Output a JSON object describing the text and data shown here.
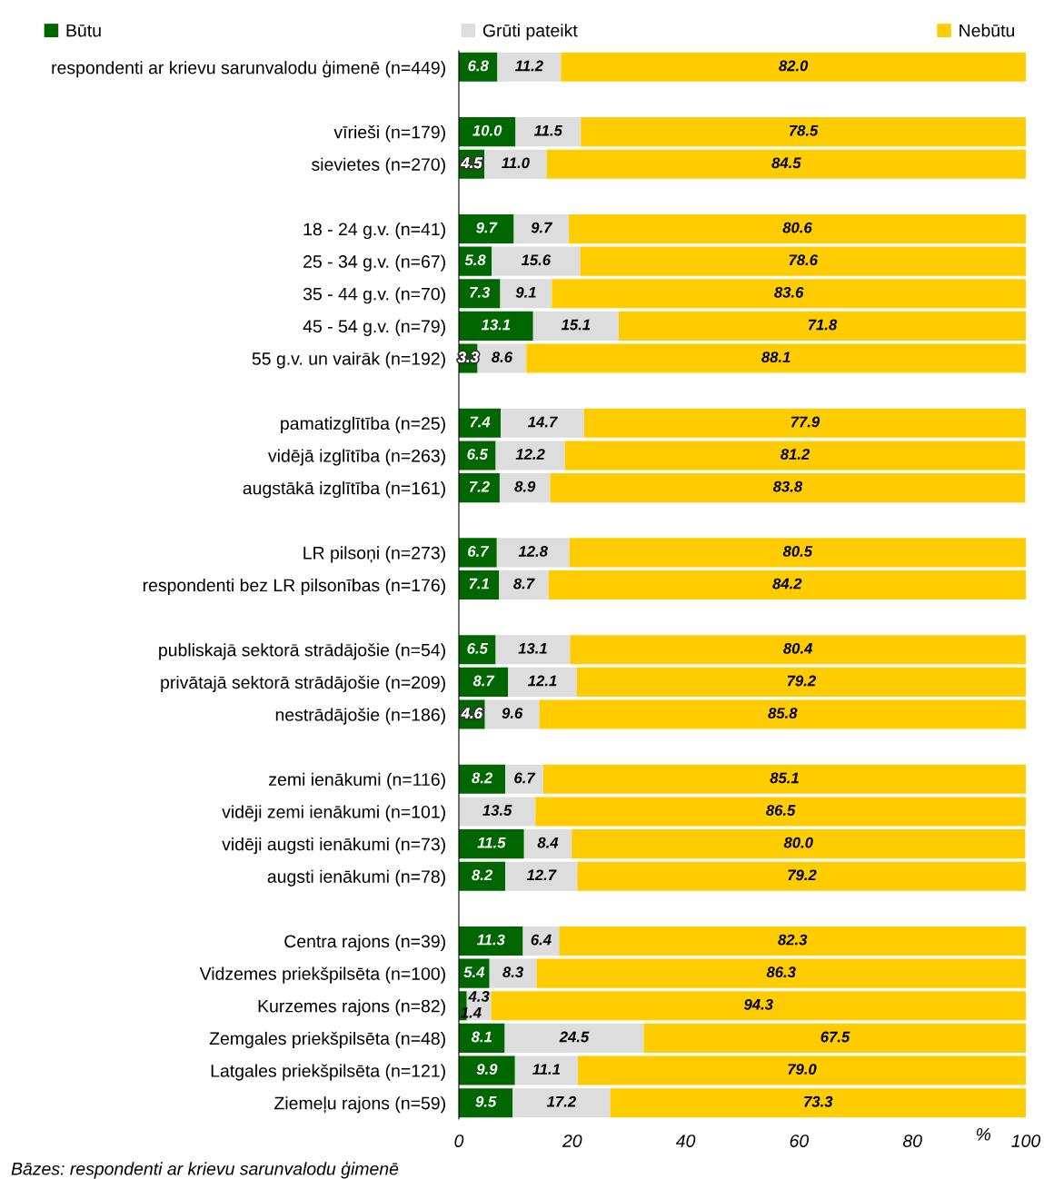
{
  "chart_data": {
    "type": "bar",
    "orientation": "horizontal",
    "stacked": true,
    "legend": "top",
    "grid": false,
    "xlabel": "%",
    "xlim": [
      0,
      100
    ],
    "xticks": [
      0,
      20,
      40,
      60,
      80,
      100
    ],
    "annotations": [
      "Bāzes: respondenti ar krievu sarunvalodu ģimenē"
    ],
    "categories": [
      "respondenti ar krievu sarunvalodu ģimenē (n=449)",
      null,
      "vīrieši (n=179)",
      "sievietes (n=270)",
      null,
      "18 - 24 g.v. (n=41)",
      "25 - 34 g.v. (n=67)",
      "35 - 44 g.v. (n=70)",
      "45 - 54 g.v. (n=79)",
      "55 g.v. un vairāk (n=192)",
      null,
      "pamatizglītība (n=25)",
      "vidējā izglītība (n=263)",
      "augstākā izglītība (n=161)",
      null,
      "LR pilsoņi (n=273)",
      "respondenti bez LR pilsonības (n=176)",
      null,
      "publiskajā sektorā strādājošie (n=54)",
      "privātajā sektorā strādājošie (n=209)",
      "nestrādājošie (n=186)",
      null,
      "zemi ienākumi (n=116)",
      "vidēji zemi ienākumi (n=101)",
      "vidēji augsti ienākumi (n=73)",
      "augsti ienākumi (n=78)",
      null,
      "Centra rajons (n=39)",
      "Vidzemes priekšpilsēta (n=100)",
      "Kurzemes rajons (n=82)",
      "Zemgales priekšpilsēta (n=48)",
      "Latgales priekšpilsēta (n=121)",
      "Ziemeļu rajons (n=59)"
    ],
    "series": [
      {
        "name": "Būtu",
        "color": "#006600",
        "values": [
          6.8,
          null,
          10.0,
          4.5,
          null,
          9.7,
          5.8,
          7.3,
          13.1,
          3.3,
          null,
          7.4,
          6.5,
          7.2,
          null,
          6.7,
          7.1,
          null,
          6.5,
          8.7,
          4.6,
          null,
          8.2,
          null,
          11.5,
          8.2,
          null,
          11.3,
          5.4,
          1.4,
          8.1,
          9.9,
          9.5
        ],
        "value_labels": [
          "6.8",
          null,
          "10.0",
          "4.5",
          null,
          "9.7",
          "5.8",
          "7.3",
          "13.1",
          "3.3",
          null,
          "7.4",
          "6.5",
          "7.2",
          null,
          "6.7",
          "7.1",
          null,
          "6.5",
          "8.7",
          "4.6",
          null,
          "8.2",
          null,
          "11.5",
          "8.2",
          null,
          "11.3",
          "5.4",
          "1.4",
          "8.1",
          "9.9",
          "9.5"
        ]
      },
      {
        "name": "Grūti pateikt",
        "color": "#dddddd",
        "values": [
          11.2,
          null,
          11.5,
          11.0,
          null,
          9.7,
          15.6,
          9.1,
          15.1,
          8.6,
          null,
          14.7,
          12.2,
          8.9,
          null,
          12.8,
          8.7,
          null,
          13.1,
          12.1,
          9.6,
          null,
          6.7,
          13.5,
          8.4,
          12.7,
          null,
          6.4,
          8.3,
          4.3,
          24.5,
          11.1,
          17.2
        ],
        "value_labels": [
          "11.2",
          null,
          "11.5",
          "11.0",
          null,
          "9.7",
          "15.6",
          "9.1",
          "15.1",
          "8.6",
          null,
          "14.7",
          "12.2",
          "8.9",
          null,
          "12.8",
          "8.7",
          null,
          "13.1",
          "12.1",
          "9.6",
          null,
          "6.7",
          "13.5",
          "8.4",
          "12.7",
          null,
          "6.4",
          "8.3",
          "4.3",
          "24.5",
          "11.1",
          "17.2"
        ]
      },
      {
        "name": "Nebūtu",
        "color": "#ffcc00",
        "values": [
          82.0,
          null,
          78.5,
          84.5,
          null,
          80.6,
          78.6,
          83.6,
          71.8,
          88.1,
          null,
          77.9,
          81.2,
          83.8,
          null,
          80.5,
          84.2,
          null,
          80.4,
          79.2,
          85.8,
          null,
          85.1,
          86.5,
          80.0,
          79.2,
          null,
          82.3,
          86.3,
          94.3,
          67.5,
          79.0,
          73.3
        ],
        "value_labels": [
          "82.0",
          null,
          "78.5",
          "84.5",
          null,
          "80.6",
          "78.6",
          "83.6",
          "71.8",
          "88.1",
          null,
          "77.9",
          "81.2",
          "83.8",
          null,
          "80.5",
          "84.2",
          null,
          "80.4",
          "79.2",
          "85.8",
          null,
          "85.1",
          "86.5",
          "80.0",
          "79.2",
          null,
          "82.3",
          "86.3",
          "94.3",
          "67.5",
          "79.0",
          "73.3"
        ]
      }
    ]
  }
}
